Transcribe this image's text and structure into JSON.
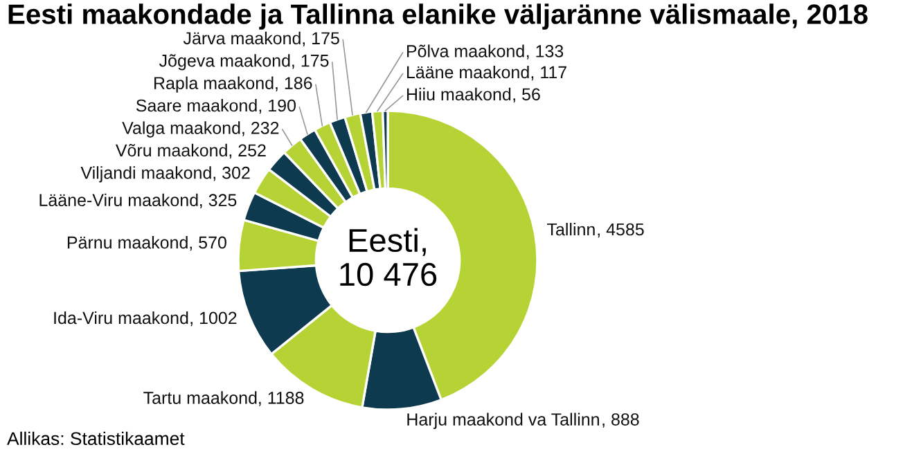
{
  "chart_data": {
    "type": "donut",
    "title": "Eesti maakondade ja Tallinna elanike väljaränne välismaale, 2018",
    "categories": [
      "Tallinn",
      "Harju maakond va Tallinn",
      "Tartu maakond",
      "Ida-Viru maakond",
      "Pärnu maakond",
      "Lääne-Viru maakond",
      "Viljandi maakond",
      "Võru maakond",
      "Valga maakond",
      "Saare maakond",
      "Rapla maakond",
      "Jõgeva maakond",
      "Järva maakond",
      "Põlva maakond",
      "Lääne maakond",
      "Hiiu maakond"
    ],
    "values": [
      4585,
      888,
      1188,
      1002,
      570,
      325,
      302,
      252,
      232,
      190,
      186,
      175,
      175,
      133,
      117,
      56
    ],
    "colors": [
      "#b5d334",
      "#0d3a4f",
      "#b5d334",
      "#0d3a4f",
      "#b5d334",
      "#0d3a4f",
      "#b5d334",
      "#0d3a4f",
      "#b5d334",
      "#0d3a4f",
      "#b5d334",
      "#0d3a4f",
      "#b5d334",
      "#0d3a4f",
      "#b5d334",
      "#0d3a4f"
    ],
    "value_labels": [
      ", 4585",
      ", 888",
      ", 1188",
      ", 1002",
      ", 570",
      ", 325",
      ", 302",
      ", 252",
      ", 232",
      ", 190",
      ", 186",
      ", 175",
      ", 175",
      ", 133",
      ", 117",
      ", 56"
    ],
    "annotations": [
      "Eesti,\n10 476",
      "Allikas: Statistikaamet"
    ]
  }
}
